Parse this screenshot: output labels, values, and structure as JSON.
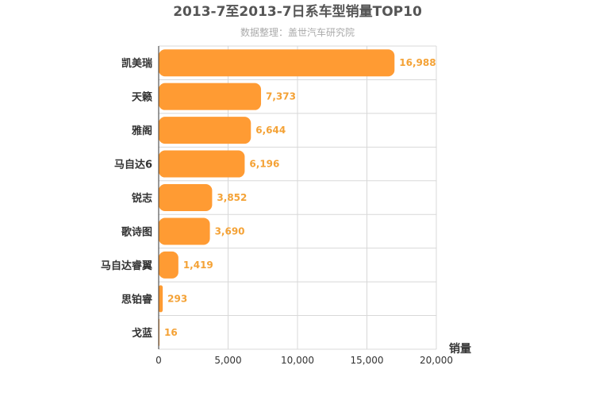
{
  "chart_data": {
    "type": "bar",
    "orientation": "horizontal",
    "title": "2013-7至2013-7日系车型销量TOP10",
    "subtitle": "数据整理：盖世汽车研究院",
    "xlabel": "销量",
    "ylabel": "",
    "categories": [
      "凯美瑞",
      "天籁",
      "雅阁",
      "马自达6",
      "锐志",
      "歌诗图",
      "马自达睿翼",
      "思铂睿",
      "戈蓝"
    ],
    "values": [
      16988,
      7373,
      6644,
      6196,
      3852,
      3690,
      1419,
      293,
      16
    ],
    "value_labels": [
      "16,988",
      "7,373",
      "6,644",
      "6,196",
      "3,852",
      "3,690",
      "1,419",
      "293",
      "16"
    ],
    "xlim": [
      0,
      20000
    ],
    "xticks": [
      0,
      5000,
      10000,
      15000,
      20000
    ],
    "xtick_labels": [
      "0",
      "5,000",
      "10,000",
      "15,000",
      "20,000"
    ],
    "grid": true,
    "legend": "none",
    "colors": {
      "bar": "#ff9b33",
      "value_label": "#f4a236",
      "title": "#555555",
      "subtitle": "#aaaaaa",
      "grid": "#d8d8d8",
      "axis": "#333333"
    }
  }
}
